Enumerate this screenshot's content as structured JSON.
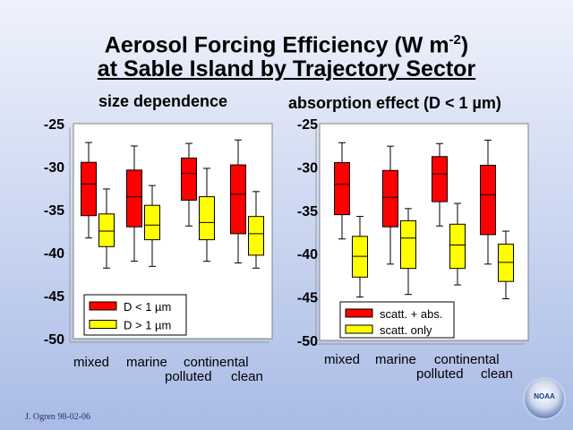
{
  "title_line1": "Aerosol Forcing Efficiency (W m",
  "title_sup": "-2",
  "title_close": ")",
  "title_line2": "at Sable Island by Trajectory Sector",
  "credit": "J. Ogren 98-02-06",
  "logo_text": "NOAA",
  "colors": {
    "red": "#ff0000",
    "yellow": "#ffff00",
    "plot_bg": "#ffffff",
    "frame": "#808080"
  },
  "chart_data": [
    {
      "type": "box",
      "title": "size dependence",
      "ylim": [
        -50,
        -25
      ],
      "yticks": [
        "-25",
        "-30",
        "-35",
        "-40",
        "-45",
        "-50"
      ],
      "yticks_values": [
        -25,
        -30,
        -35,
        -40,
        -45,
        -50
      ],
      "category_labels_row1": [
        "mixed",
        "marine",
        "continental"
      ],
      "category_labels_row2": [
        "polluted",
        "clean"
      ],
      "categories": [
        "mixed",
        "marine",
        "continental polluted",
        "continental clean"
      ],
      "legend_position": "bottom-left",
      "series": [
        {
          "name": "D < 1 µm",
          "color": "#ff0000",
          "boxes": [
            {
              "min": -38.3,
              "q1": -35.7,
              "median": -32.0,
              "q3": -29.5,
              "max": -27.2
            },
            {
              "min": -41.0,
              "q1": -37.0,
              "median": -33.5,
              "q3": -30.4,
              "max": -27.6
            },
            {
              "min": -36.9,
              "q1": -33.9,
              "median": -30.8,
              "q3": -29.0,
              "max": -27.3
            },
            {
              "min": -41.2,
              "q1": -37.8,
              "median": -33.2,
              "q3": -29.8,
              "max": -26.9
            }
          ]
        },
        {
          "name": "D > 1 µm",
          "color": "#ffff00",
          "boxes": [
            {
              "min": -41.8,
              "q1": -39.3,
              "median": -37.5,
              "q3": -35.5,
              "max": -32.6
            },
            {
              "min": -41.6,
              "q1": -38.5,
              "median": -36.8,
              "q3": -34.5,
              "max": -32.2
            },
            {
              "min": -41.0,
              "q1": -38.5,
              "median": -36.5,
              "q3": -33.5,
              "max": -30.2
            },
            {
              "min": -41.8,
              "q1": -40.3,
              "median": -37.8,
              "q3": -35.8,
              "max": -32.9
            }
          ]
        }
      ]
    },
    {
      "type": "box",
      "title": "absorption effect (D < 1 µm)",
      "ylim": [
        -50,
        -25
      ],
      "yticks": [
        "-25",
        "-30",
        "-35",
        "-40",
        "-45",
        "-50"
      ],
      "yticks_values": [
        -25,
        -30,
        -35,
        -40,
        -45,
        -50
      ],
      "category_labels_row1": [
        "mixed",
        "marine",
        "continental"
      ],
      "category_labels_row2": [
        "polluted",
        "clean"
      ],
      "categories": [
        "mixed",
        "marine",
        "continental polluted",
        "continental clean"
      ],
      "legend_position": "bottom-left",
      "series": [
        {
          "name": "scatt. + abs.",
          "color": "#ff0000",
          "boxes": [
            {
              "min": -38.3,
              "q1": -35.5,
              "median": -32.0,
              "q3": -29.5,
              "max": -27.2
            },
            {
              "min": -41.2,
              "q1": -36.9,
              "median": -33.5,
              "q3": -30.4,
              "max": -27.6
            },
            {
              "min": -36.8,
              "q1": -34.0,
              "median": -30.8,
              "q3": -28.8,
              "max": -27.3
            },
            {
              "min": -41.2,
              "q1": -37.8,
              "median": -33.2,
              "q3": -29.8,
              "max": -26.9
            }
          ]
        },
        {
          "name": "scatt. only",
          "color": "#ffff00",
          "boxes": [
            {
              "min": -45.0,
              "q1": -42.7,
              "median": -40.3,
              "q3": -38.0,
              "max": -35.7
            },
            {
              "min": -44.7,
              "q1": -41.7,
              "median": -38.2,
              "q3": -36.2,
              "max": -34.8
            },
            {
              "min": -43.6,
              "q1": -41.7,
              "median": -39.0,
              "q3": -36.6,
              "max": -34.2
            },
            {
              "min": -45.2,
              "q1": -43.2,
              "median": -41.0,
              "q3": -38.9,
              "max": -37.4
            }
          ]
        }
      ]
    }
  ]
}
